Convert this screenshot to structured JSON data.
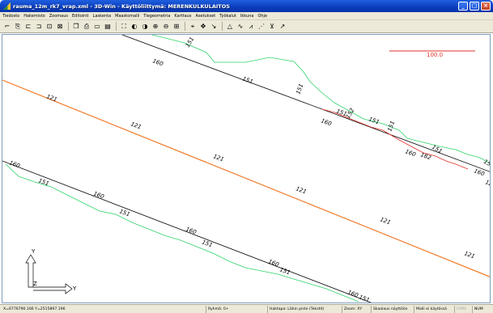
{
  "window": {
    "title": "rauma_12m_rk7_vrap.xml - 3D-Win - Käyttöliittymä: MERENKULKULAITOS",
    "min_label": "_",
    "max_label": "□",
    "close_label": "×"
  },
  "menu": [
    "Tiedosto",
    "Hakemisto",
    "Zoomaus",
    "Editointi",
    "Laskenta",
    "Maastomalli",
    "Tiegeometria",
    "Karttaus",
    "Asetukset",
    "Työkalut",
    "Ikkuna",
    "Ohje"
  ],
  "toolbar": {
    "icons": [
      "point-add-icon",
      "point-edit-icon",
      "line-add-icon",
      "line-edit-icon",
      "area-add-icon",
      "area-edit-icon",
      "copy-icon",
      "print-icon",
      "window-icon",
      "layers-icon",
      "zoom-extents-icon",
      "zoom-previous-icon",
      "zoom-next-icon",
      "zoom-in-icon",
      "zoom-out-icon",
      "zoom-window-icon",
      "measure-icon",
      "move-icon",
      "select-icon",
      "triangle-icon",
      "contour-icon",
      "profile-icon",
      "grid-icon",
      "symbol-icon",
      "north-icon"
    ],
    "glyphs": [
      "⌐",
      "⎘",
      "⊏",
      "⊐",
      "⊡",
      "⊠",
      "❐",
      "⎙",
      "▭",
      "▤",
      "⛶",
      "◐",
      "◑",
      "⊕",
      "⊖",
      "⊞",
      "⌖",
      "✥",
      "↘",
      "△",
      "∿",
      "⩘",
      "⋰",
      "⊻",
      "↗"
    ]
  },
  "canvas": {
    "scale_label": "100.0",
    "axis_y_label": "Y",
    "axis_x_label": "Y",
    "axis_z_label": "Z",
    "line_labels": {
      "black_top": [
        "160",
        "160",
        "160",
        "160"
      ],
      "green_top": [
        "151",
        "151",
        "151",
        "151",
        "151",
        "151",
        "151",
        "151"
      ],
      "red_top": [
        "152",
        "182"
      ],
      "orange": [
        "121",
        "121",
        "121",
        "121",
        "121",
        "121",
        "121"
      ],
      "black_bottom": [
        "160",
        "160",
        "160",
        "160",
        "160",
        "160"
      ],
      "green_bottom": [
        "151",
        "151",
        "151",
        "151",
        "151"
      ]
    },
    "colors": {
      "orange_line": "#f07a2a",
      "green_line": "#2fd36a",
      "red_line": "#e0302a",
      "black_line": "#000000",
      "scale_bar": "#e0302a"
    }
  },
  "status": {
    "coords": "X=6776790.166  Y=2515897.196",
    "group": "Ryhmä: 0+",
    "snap": "Haktapa: Lähin piste (Tekstit)",
    "zoom": "Zoom: XY",
    "scaling": "Skaalaus näyttöön",
    "model": "Malli ei käytössä",
    "caps": "CAPS",
    "num": "NUM"
  }
}
